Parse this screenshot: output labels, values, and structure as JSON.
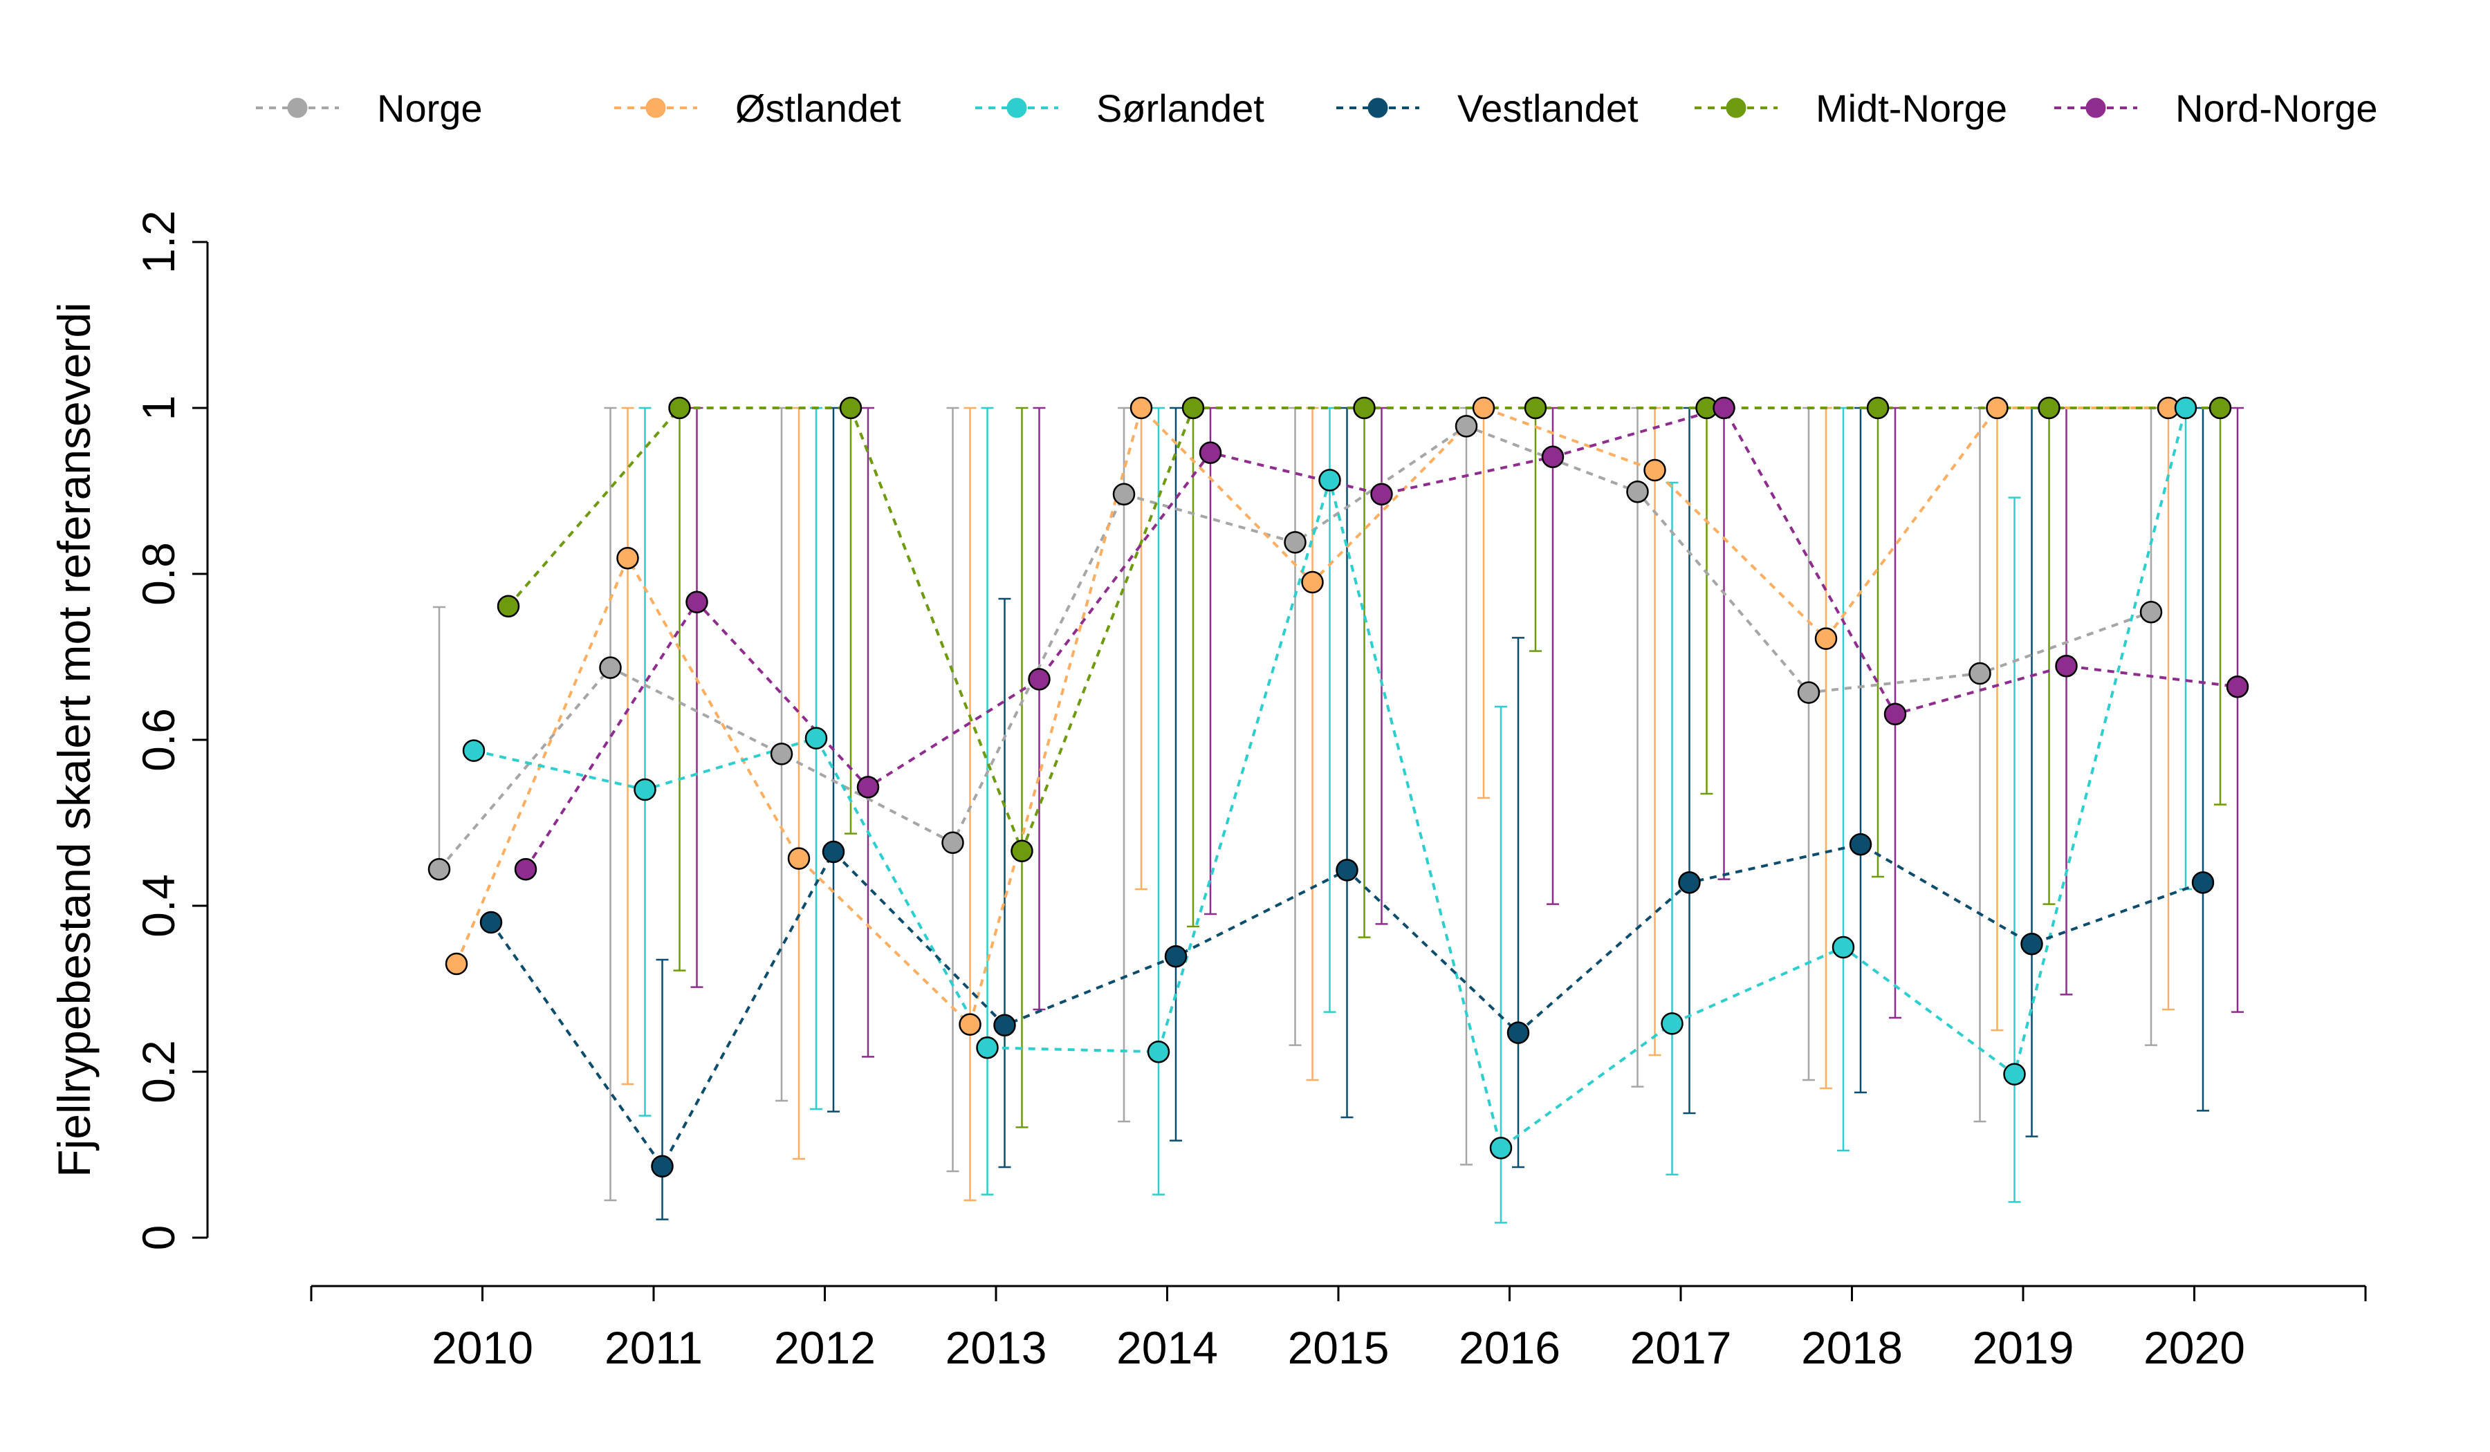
{
  "chart_data": {
    "type": "line",
    "title": "",
    "xlabel": "",
    "ylabel": "Fjellrypebestand skalert mot referanseverdi",
    "x": [
      2010,
      2011,
      2012,
      2013,
      2014,
      2015,
      2016,
      2017,
      2018,
      2019,
      2020
    ],
    "x_tick_labels": [
      "2010",
      "2011",
      "2012",
      "2013",
      "2014",
      "2015",
      "2016",
      "2017",
      "2018",
      "2019",
      "2020"
    ],
    "y_ticks": [
      0,
      0.2,
      0.4,
      0.6,
      0.8,
      1,
      1.2
    ],
    "y_tick_labels": [
      "0",
      "0.2",
      "0.4",
      "0.6",
      "0.8",
      "1",
      "1.2"
    ],
    "ylim": [
      0,
      1.2
    ],
    "xlim": [
      2009,
      2021
    ],
    "grid": false,
    "legend_position": "top",
    "series": [
      {
        "name": "Norge",
        "color": "#A6A6A6",
        "values": [
          0.444,
          0.687,
          0.583,
          0.476,
          0.896,
          0.838,
          0.978,
          0.899,
          0.657,
          0.68,
          0.754
        ],
        "lower": [
          null,
          0.045,
          0.165,
          0.08,
          0.14,
          0.232,
          0.088,
          0.182,
          0.19,
          0.14,
          0.232
        ],
        "upper": [
          0.76,
          1,
          1,
          1,
          1,
          1,
          1,
          1,
          1,
          1,
          1
        ]
      },
      {
        "name": "Østlandet",
        "color": "#FDAE61",
        "values": [
          0.33,
          0.819,
          0.457,
          0.257,
          1,
          0.79,
          1,
          0.925,
          0.722,
          1,
          1
        ],
        "lower": [
          null,
          0.185,
          0.095,
          0.045,
          0.42,
          0.19,
          0.53,
          0.22,
          0.18,
          0.25,
          0.275
        ],
        "upper": [
          null,
          1,
          1,
          1,
          1,
          1,
          1,
          1,
          1,
          1,
          1
        ]
      },
      {
        "name": "Sørlandet",
        "color": "#2ECECE",
        "values": [
          0.587,
          0.54,
          0.602,
          0.229,
          0.224,
          0.913,
          0.108,
          0.258,
          0.35,
          0.197,
          1
        ],
        "lower": [
          null,
          0.147,
          0.155,
          0.052,
          0.052,
          0.272,
          0.018,
          0.076,
          0.105,
          0.043,
          0.42
        ],
        "upper": [
          null,
          1,
          1,
          1,
          1,
          1,
          0.64,
          0.91,
          1,
          0.892,
          1
        ]
      },
      {
        "name": "Vestlandet",
        "color": "#0C4D6E",
        "values": [
          0.38,
          0.086,
          0.465,
          0.256,
          0.339,
          0.443,
          0.247,
          0.428,
          0.474,
          0.354,
          0.428
        ],
        "lower": [
          null,
          0.022,
          0.152,
          0.085,
          0.117,
          0.145,
          0.085,
          0.15,
          0.175,
          0.122,
          0.153
        ],
        "upper": [
          null,
          0.335,
          1,
          0.77,
          1,
          1,
          0.723,
          1,
          1,
          1,
          1
        ]
      },
      {
        "name": "Midt-Norge",
        "color": "#6E9A0E",
        "values": [
          0.761,
          1,
          1,
          0.466,
          1,
          1,
          1,
          1,
          1,
          1,
          1
        ],
        "lower": [
          null,
          0.322,
          0.487,
          0.133,
          0.375,
          0.362,
          0.707,
          0.535,
          0.435,
          0.402,
          0.522
        ],
        "upper": [
          null,
          1,
          1,
          1,
          1,
          1,
          1,
          1,
          1,
          1,
          1
        ]
      },
      {
        "name": "Nord-Norge",
        "color": "#8E2D8E",
        "values": [
          0.444,
          0.766,
          0.543,
          0.673,
          0.946,
          0.896,
          0.941,
          1,
          0.631,
          0.689,
          0.664
        ],
        "lower": [
          null,
          0.302,
          0.218,
          0.275,
          0.39,
          0.378,
          0.402,
          0.432,
          0.265,
          0.293,
          0.272
        ],
        "upper": [
          null,
          1,
          1,
          1,
          1,
          1,
          1,
          1,
          1,
          1,
          1
        ]
      }
    ]
  }
}
